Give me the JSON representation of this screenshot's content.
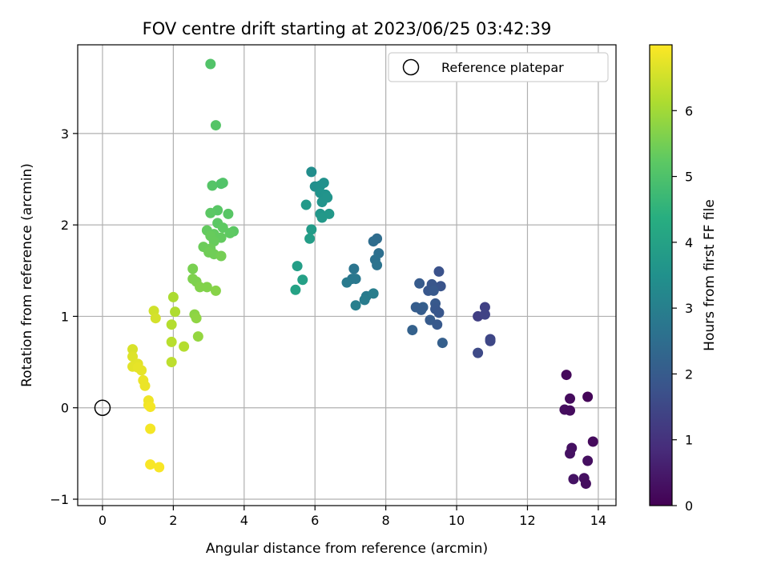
{
  "chart_data": {
    "type": "scatter",
    "title": "FOV centre drift starting at 2023/06/25 03:42:39",
    "xlabel": "Angular distance from reference (arcmin)",
    "ylabel": "Rotation from reference (arcmin)",
    "xlim": [
      -0.7,
      14.5
    ],
    "ylim": [
      -1.07,
      3.97
    ],
    "xticks": [
      0,
      2,
      4,
      6,
      8,
      10,
      12,
      14
    ],
    "yticks": [
      -1,
      0,
      1,
      2,
      3
    ],
    "grid": true,
    "legend": {
      "position": "top-right",
      "entries": [
        "Reference platepar"
      ]
    },
    "reference_point": {
      "x": 0,
      "y": 0,
      "label": "Reference platepar"
    },
    "colorbar": {
      "label": "Hours from first FF file",
      "range": [
        0,
        7.0
      ],
      "ticks": [
        0,
        1,
        2,
        3,
        4,
        5,
        6
      ],
      "colormap": "viridis"
    },
    "points": [
      [
        13.1,
        0.36,
        0.15
      ],
      [
        13.2,
        0.1,
        0.2
      ],
      [
        13.05,
        -0.02,
        0.25
      ],
      [
        13.2,
        -0.03,
        0.22
      ],
      [
        13.7,
        0.12,
        0.1
      ],
      [
        13.25,
        -0.44,
        0.3
      ],
      [
        13.2,
        -0.5,
        0.32
      ],
      [
        13.85,
        -0.37,
        0.18
      ],
      [
        13.7,
        -0.58,
        0.28
      ],
      [
        13.3,
        -0.78,
        0.35
      ],
      [
        13.6,
        -0.77,
        0.3
      ],
      [
        13.65,
        -0.83,
        0.25
      ],
      [
        10.6,
        1.0,
        1.3
      ],
      [
        10.8,
        1.1,
        1.35
      ],
      [
        10.8,
        1.02,
        1.4
      ],
      [
        10.95,
        0.75,
        1.45
      ],
      [
        10.95,
        0.73,
        1.5
      ],
      [
        10.6,
        0.6,
        1.55
      ],
      [
        9.5,
        1.49,
        1.75
      ],
      [
        9.55,
        1.33,
        1.8
      ],
      [
        9.3,
        1.35,
        1.85
      ],
      [
        9.2,
        1.28,
        1.9
      ],
      [
        9.35,
        1.28,
        1.95
      ],
      [
        8.95,
        1.36,
        2.0
      ],
      [
        8.85,
        1.1,
        2.05
      ],
      [
        9.05,
        1.1,
        2.1
      ],
      [
        9.0,
        1.07,
        2.05
      ],
      [
        9.4,
        1.14,
        1.95
      ],
      [
        9.4,
        1.08,
        1.9
      ],
      [
        9.5,
        1.04,
        1.85
      ],
      [
        9.25,
        0.96,
        2.0
      ],
      [
        9.45,
        0.91,
        1.95
      ],
      [
        8.75,
        0.85,
        2.15
      ],
      [
        9.6,
        0.71,
        2.1
      ],
      [
        7.75,
        1.85,
        2.45
      ],
      [
        7.65,
        1.82,
        2.5
      ],
      [
        7.8,
        1.69,
        2.55
      ],
      [
        7.7,
        1.62,
        2.6
      ],
      [
        7.75,
        1.56,
        2.65
      ],
      [
        7.1,
        1.52,
        2.7
      ],
      [
        7.05,
        1.41,
        2.75
      ],
      [
        7.15,
        1.41,
        2.8
      ],
      [
        6.9,
        1.37,
        2.85
      ],
      [
        7.45,
        1.22,
        2.85
      ],
      [
        7.4,
        1.18,
        2.9
      ],
      [
        7.65,
        1.25,
        2.95
      ],
      [
        7.15,
        1.12,
        3.0
      ],
      [
        5.9,
        2.58,
        3.4
      ],
      [
        6.0,
        2.42,
        3.45
      ],
      [
        6.15,
        2.43,
        3.5
      ],
      [
        6.25,
        2.46,
        3.5
      ],
      [
        6.15,
        2.35,
        3.55
      ],
      [
        6.3,
        2.33,
        3.55
      ],
      [
        6.2,
        2.25,
        3.6
      ],
      [
        6.35,
        2.3,
        3.6
      ],
      [
        6.15,
        2.12,
        3.65
      ],
      [
        6.2,
        2.08,
        3.7
      ],
      [
        6.4,
        2.12,
        3.7
      ],
      [
        5.75,
        2.22,
        3.75
      ],
      [
        5.9,
        1.95,
        3.8
      ],
      [
        5.85,
        1.85,
        3.85
      ],
      [
        5.5,
        1.55,
        3.9
      ],
      [
        5.65,
        1.4,
        3.95
      ],
      [
        5.45,
        1.29,
        4.0
      ],
      [
        3.05,
        3.76,
        5.05
      ],
      [
        3.2,
        3.09,
        5.1
      ],
      [
        3.35,
        2.45,
        5.0
      ],
      [
        3.4,
        2.46,
        5.05
      ],
      [
        3.1,
        2.43,
        5.1
      ],
      [
        3.25,
        2.16,
        5.15
      ],
      [
        3.05,
        2.13,
        5.2
      ],
      [
        3.55,
        2.12,
        5.15
      ],
      [
        3.25,
        2.02,
        5.2
      ],
      [
        3.4,
        1.97,
        5.25
      ],
      [
        3.7,
        1.93,
        5.2
      ],
      [
        3.6,
        1.91,
        5.25
      ],
      [
        2.95,
        1.94,
        5.3
      ],
      [
        3.15,
        1.9,
        5.3
      ],
      [
        3.05,
        1.88,
        5.35
      ],
      [
        3.35,
        1.86,
        5.3
      ],
      [
        3.15,
        1.82,
        5.35
      ],
      [
        2.85,
        1.76,
        5.4
      ],
      [
        3.05,
        1.74,
        5.4
      ],
      [
        3.0,
        1.7,
        5.45
      ],
      [
        3.15,
        1.68,
        5.45
      ],
      [
        3.35,
        1.66,
        5.5
      ],
      [
        2.55,
        1.52,
        5.55
      ],
      [
        2.55,
        1.41,
        5.6
      ],
      [
        2.65,
        1.38,
        5.6
      ],
      [
        2.75,
        1.32,
        5.65
      ],
      [
        2.95,
        1.32,
        5.65
      ],
      [
        3.2,
        1.28,
        5.7
      ],
      [
        2.6,
        1.02,
        5.75
      ],
      [
        2.65,
        0.98,
        5.8
      ],
      [
        2.7,
        0.78,
        5.85
      ],
      [
        2.0,
        1.21,
        6.1
      ],
      [
        2.05,
        1.05,
        6.15
      ],
      [
        1.95,
        0.91,
        6.2
      ],
      [
        1.95,
        0.72,
        6.25
      ],
      [
        2.3,
        0.67,
        6.2
      ],
      [
        1.95,
        0.5,
        6.3
      ],
      [
        1.45,
        1.06,
        6.5
      ],
      [
        1.5,
        0.98,
        6.55
      ],
      [
        0.85,
        0.64,
        6.6
      ],
      [
        0.85,
        0.56,
        6.65
      ],
      [
        1.0,
        0.48,
        6.7
      ],
      [
        0.85,
        0.45,
        6.7
      ],
      [
        1.1,
        0.41,
        6.75
      ],
      [
        1.0,
        0.44,
        6.75
      ],
      [
        1.15,
        0.3,
        6.8
      ],
      [
        1.2,
        0.24,
        6.8
      ],
      [
        1.3,
        0.08,
        6.85
      ],
      [
        1.3,
        0.03,
        6.85
      ],
      [
        1.35,
        0.01,
        6.9
      ],
      [
        1.35,
        -0.23,
        6.9
      ],
      [
        1.35,
        -0.62,
        6.95
      ],
      [
        1.6,
        -0.65,
        6.95
      ]
    ]
  }
}
